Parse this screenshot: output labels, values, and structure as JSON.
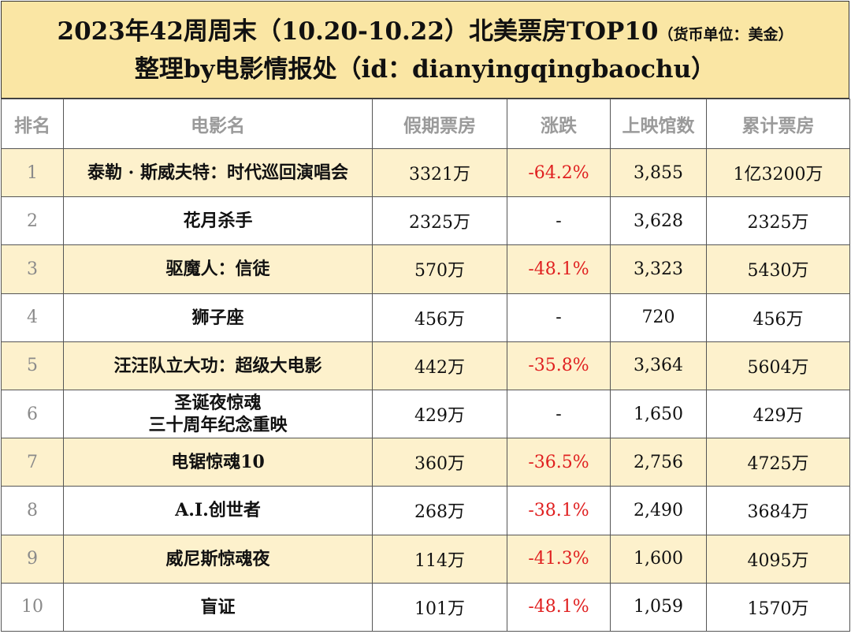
{
  "header": {
    "title_main": "2023年42周周末（10.20-10.22）北美票房TOP10",
    "title_unit": "（货币单位：美金）",
    "subtitle": "整理by电影情报处（id：dianyingqingbaochu）"
  },
  "columns": {
    "rank": "排名",
    "name": "电影名",
    "weekend": "假期票房",
    "change": "涨跌",
    "theaters": "上映馆数",
    "total": "累计票房"
  },
  "rows": [
    {
      "rank": "1",
      "name": "泰勒 · 斯威夫特：时代巡回演唱会",
      "weekend": "3321万",
      "change": "-64.2%",
      "theaters": "3,855",
      "total": "1亿3200万"
    },
    {
      "rank": "2",
      "name": "花月杀手",
      "weekend": "2325万",
      "change": "-",
      "theaters": "3,628",
      "total": "2325万"
    },
    {
      "rank": "3",
      "name": "驱魔人：信徒",
      "weekend": "570万",
      "change": "-48.1%",
      "theaters": "3,323",
      "total": "5430万"
    },
    {
      "rank": "4",
      "name": "狮子座",
      "weekend": "456万",
      "change": "-",
      "theaters": "720",
      "total": "456万"
    },
    {
      "rank": "5",
      "name": "汪汪队立大功：超级大电影",
      "weekend": "442万",
      "change": "-35.8%",
      "theaters": "3,364",
      "total": "5604万"
    },
    {
      "rank": "6",
      "name": "圣诞夜惊魂",
      "name_line2": "三十周年纪念重映",
      "weekend": "429万",
      "change": "-",
      "theaters": "1,650",
      "total": "429万"
    },
    {
      "rank": "7",
      "name": "电锯惊魂10",
      "weekend": "360万",
      "change": "-36.5%",
      "theaters": "2,756",
      "total": "4725万"
    },
    {
      "rank": "8",
      "name": "A.I.创世者",
      "weekend": "268万",
      "change": "-38.1%",
      "theaters": "2,490",
      "total": "3684万"
    },
    {
      "rank": "9",
      "name": "威尼斯惊魂夜",
      "weekend": "114万",
      "change": "-41.3%",
      "theaters": "1,600",
      "total": "4095万"
    },
    {
      "rank": "10",
      "name": "盲证",
      "weekend": "101万",
      "change": "-48.1%",
      "theaters": "1,059",
      "total": "1570万"
    }
  ]
}
